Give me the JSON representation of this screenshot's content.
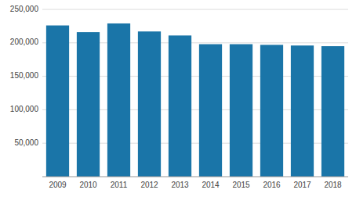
{
  "chart_data": {
    "type": "bar",
    "categories": [
      "2009",
      "2010",
      "2011",
      "2012",
      "2013",
      "2014",
      "2015",
      "2016",
      "2017",
      "2018"
    ],
    "values": [
      226000,
      216000,
      229000,
      217000,
      211000,
      198000,
      198000,
      197000,
      196000,
      195000
    ],
    "color": "#1a75a8",
    "ylim": [
      0,
      250000
    ],
    "yticks": [
      {
        "value": 50000,
        "label": "50,000"
      },
      {
        "value": 100000,
        "label": "100,000"
      },
      {
        "value": 150000,
        "label": "150,000"
      },
      {
        "value": 200000,
        "label": "200,000"
      },
      {
        "value": 250000,
        "label": "250,000"
      }
    ],
    "grid": true
  }
}
